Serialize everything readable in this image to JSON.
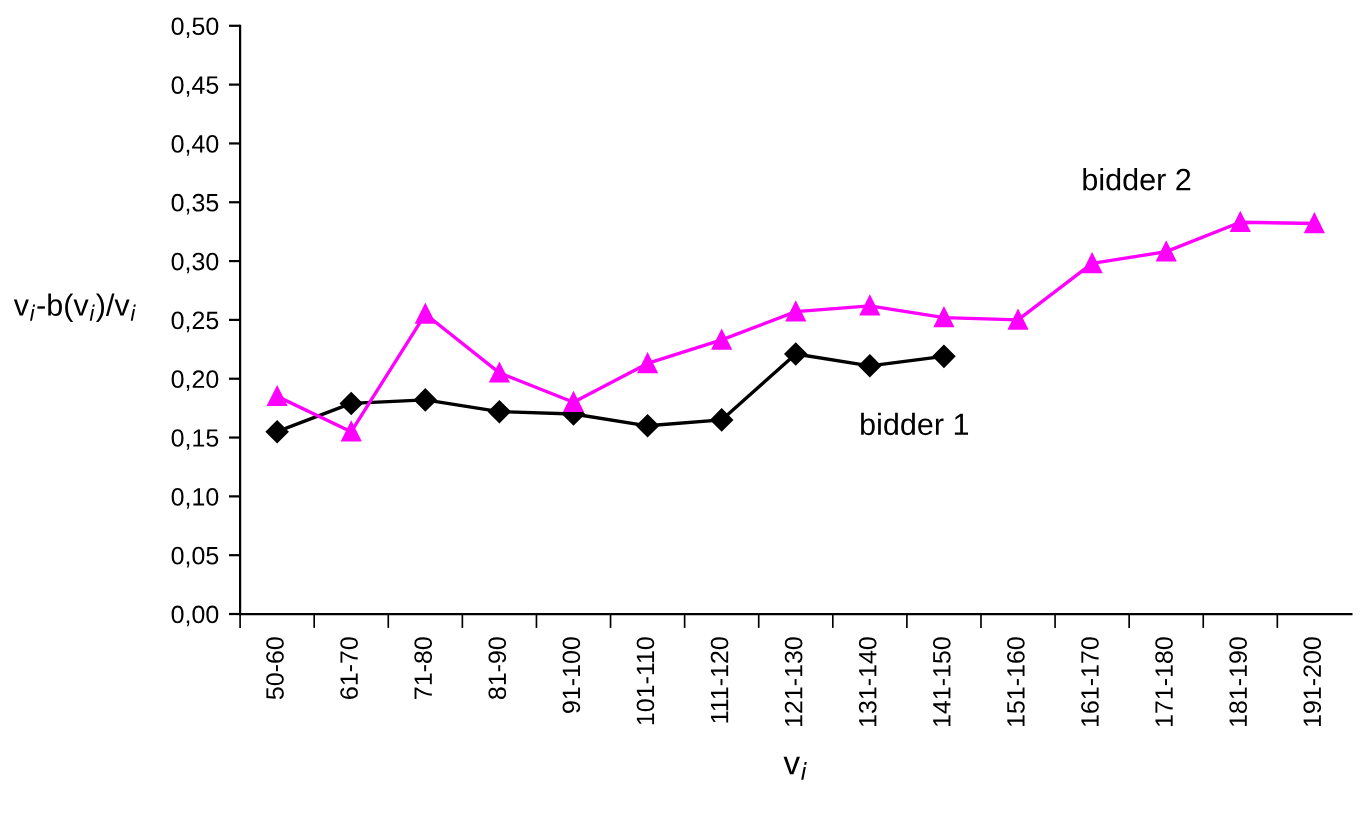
{
  "chart_data": {
    "type": "line",
    "xlabel": "v$_{i}$",
    "ylabel": "v$_{i}$-b(v$_{i}$)/v$_{i}$",
    "categories": [
      "50-60",
      "61-70",
      "71-80",
      "81-90",
      "91-100",
      "101-110",
      "111-120",
      "121-130",
      "131-140",
      "141-150",
      "151-160",
      "161-170",
      "171-180",
      "181-190",
      "191-200"
    ],
    "series": [
      {
        "name": "bidder 1",
        "color": "#000000",
        "marker": "diamond",
        "values": [
          0.155,
          0.179,
          0.182,
          0.172,
          0.17,
          0.16,
          0.165,
          0.221,
          0.211,
          0.219,
          null,
          null,
          null,
          null,
          null
        ]
      },
      {
        "name": "bidder 2",
        "color": "#ff00ff",
        "marker": "triangle",
        "values": [
          0.185,
          0.155,
          0.255,
          0.205,
          0.18,
          0.213,
          0.233,
          0.257,
          0.262,
          0.252,
          0.25,
          0.298,
          0.308,
          0.333,
          0.332
        ]
      }
    ],
    "ylim": [
      0,
      0.5
    ],
    "yticks": [
      {
        "value": 0,
        "label": "0,00"
      },
      {
        "value": 0.05,
        "label": "0,05"
      },
      {
        "value": 0.1,
        "label": "0,10"
      },
      {
        "value": 0.15,
        "label": "0,15"
      },
      {
        "value": 0.2,
        "label": "0,20"
      },
      {
        "value": 0.25,
        "label": "0,25"
      },
      {
        "value": 0.3,
        "label": "0,30"
      },
      {
        "value": 0.35,
        "label": "0,35"
      },
      {
        "value": 0.4,
        "label": "0,40"
      },
      {
        "value": 0.45,
        "label": "0,45"
      },
      {
        "value": 0.5,
        "label": "0,50"
      }
    ],
    "grid": false,
    "legend": false,
    "line_style": "solid"
  }
}
